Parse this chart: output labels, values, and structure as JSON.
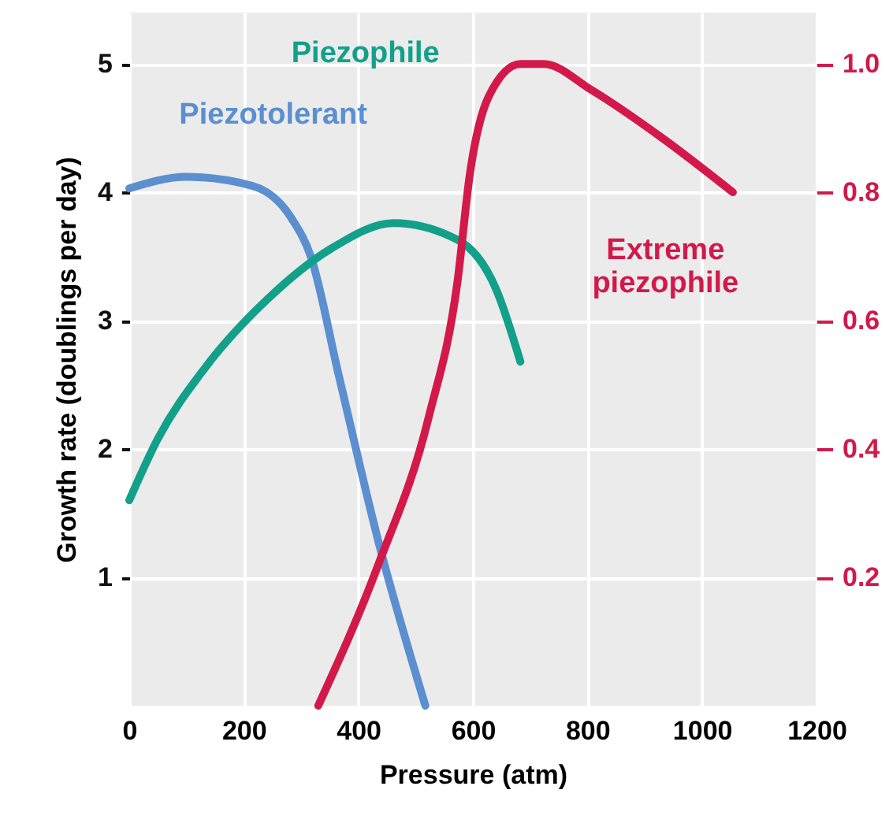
{
  "chart_data": {
    "type": "line",
    "xlabel": "Pressure (atm)",
    "ylabel": "Growth rate (doublings per day)",
    "xlim": [
      0,
      1200
    ],
    "xticks": [
      0,
      200,
      400,
      600,
      800,
      1000,
      1200
    ],
    "ylim": [
      0,
      5.4
    ],
    "yticks": [
      1,
      2,
      3,
      4,
      5
    ],
    "y2lim": [
      0,
      1.08
    ],
    "y2ticks": [
      0.2,
      0.4,
      0.6,
      0.8,
      {
        "value": 1,
        "label": "1.0"
      }
    ],
    "grid": true,
    "series": [
      {
        "name": "Piezotolerant",
        "color": "#5b8fd0",
        "x": [
          0,
          100,
          215,
          283,
          317,
          366,
          435,
          517
        ],
        "values": [
          4.03,
          4.12,
          4.05,
          3.8,
          3.5,
          2.57,
          1.28,
          0
        ]
      },
      {
        "name": "Piezophile",
        "color": "#13a08a",
        "x": [
          0,
          50,
          132,
          242,
          352,
          462,
          573,
          641,
          683
        ],
        "values": [
          1.6,
          2.08,
          2.63,
          3.17,
          3.56,
          3.76,
          3.63,
          3.24,
          2.68
        ]
      },
      {
        "name": "Extreme piezophile",
        "color": "#d2194a",
        "axis": "y2",
        "x": [
          330,
          435,
          523,
          573,
          595,
          628,
          683,
          724,
          806,
          930,
          1054
        ],
        "values": [
          0,
          0.22,
          0.45,
          0.66,
          0.83,
          0.95,
          1.0,
          1.0,
          0.96,
          0.885,
          0.8
        ]
      }
    ]
  }
}
